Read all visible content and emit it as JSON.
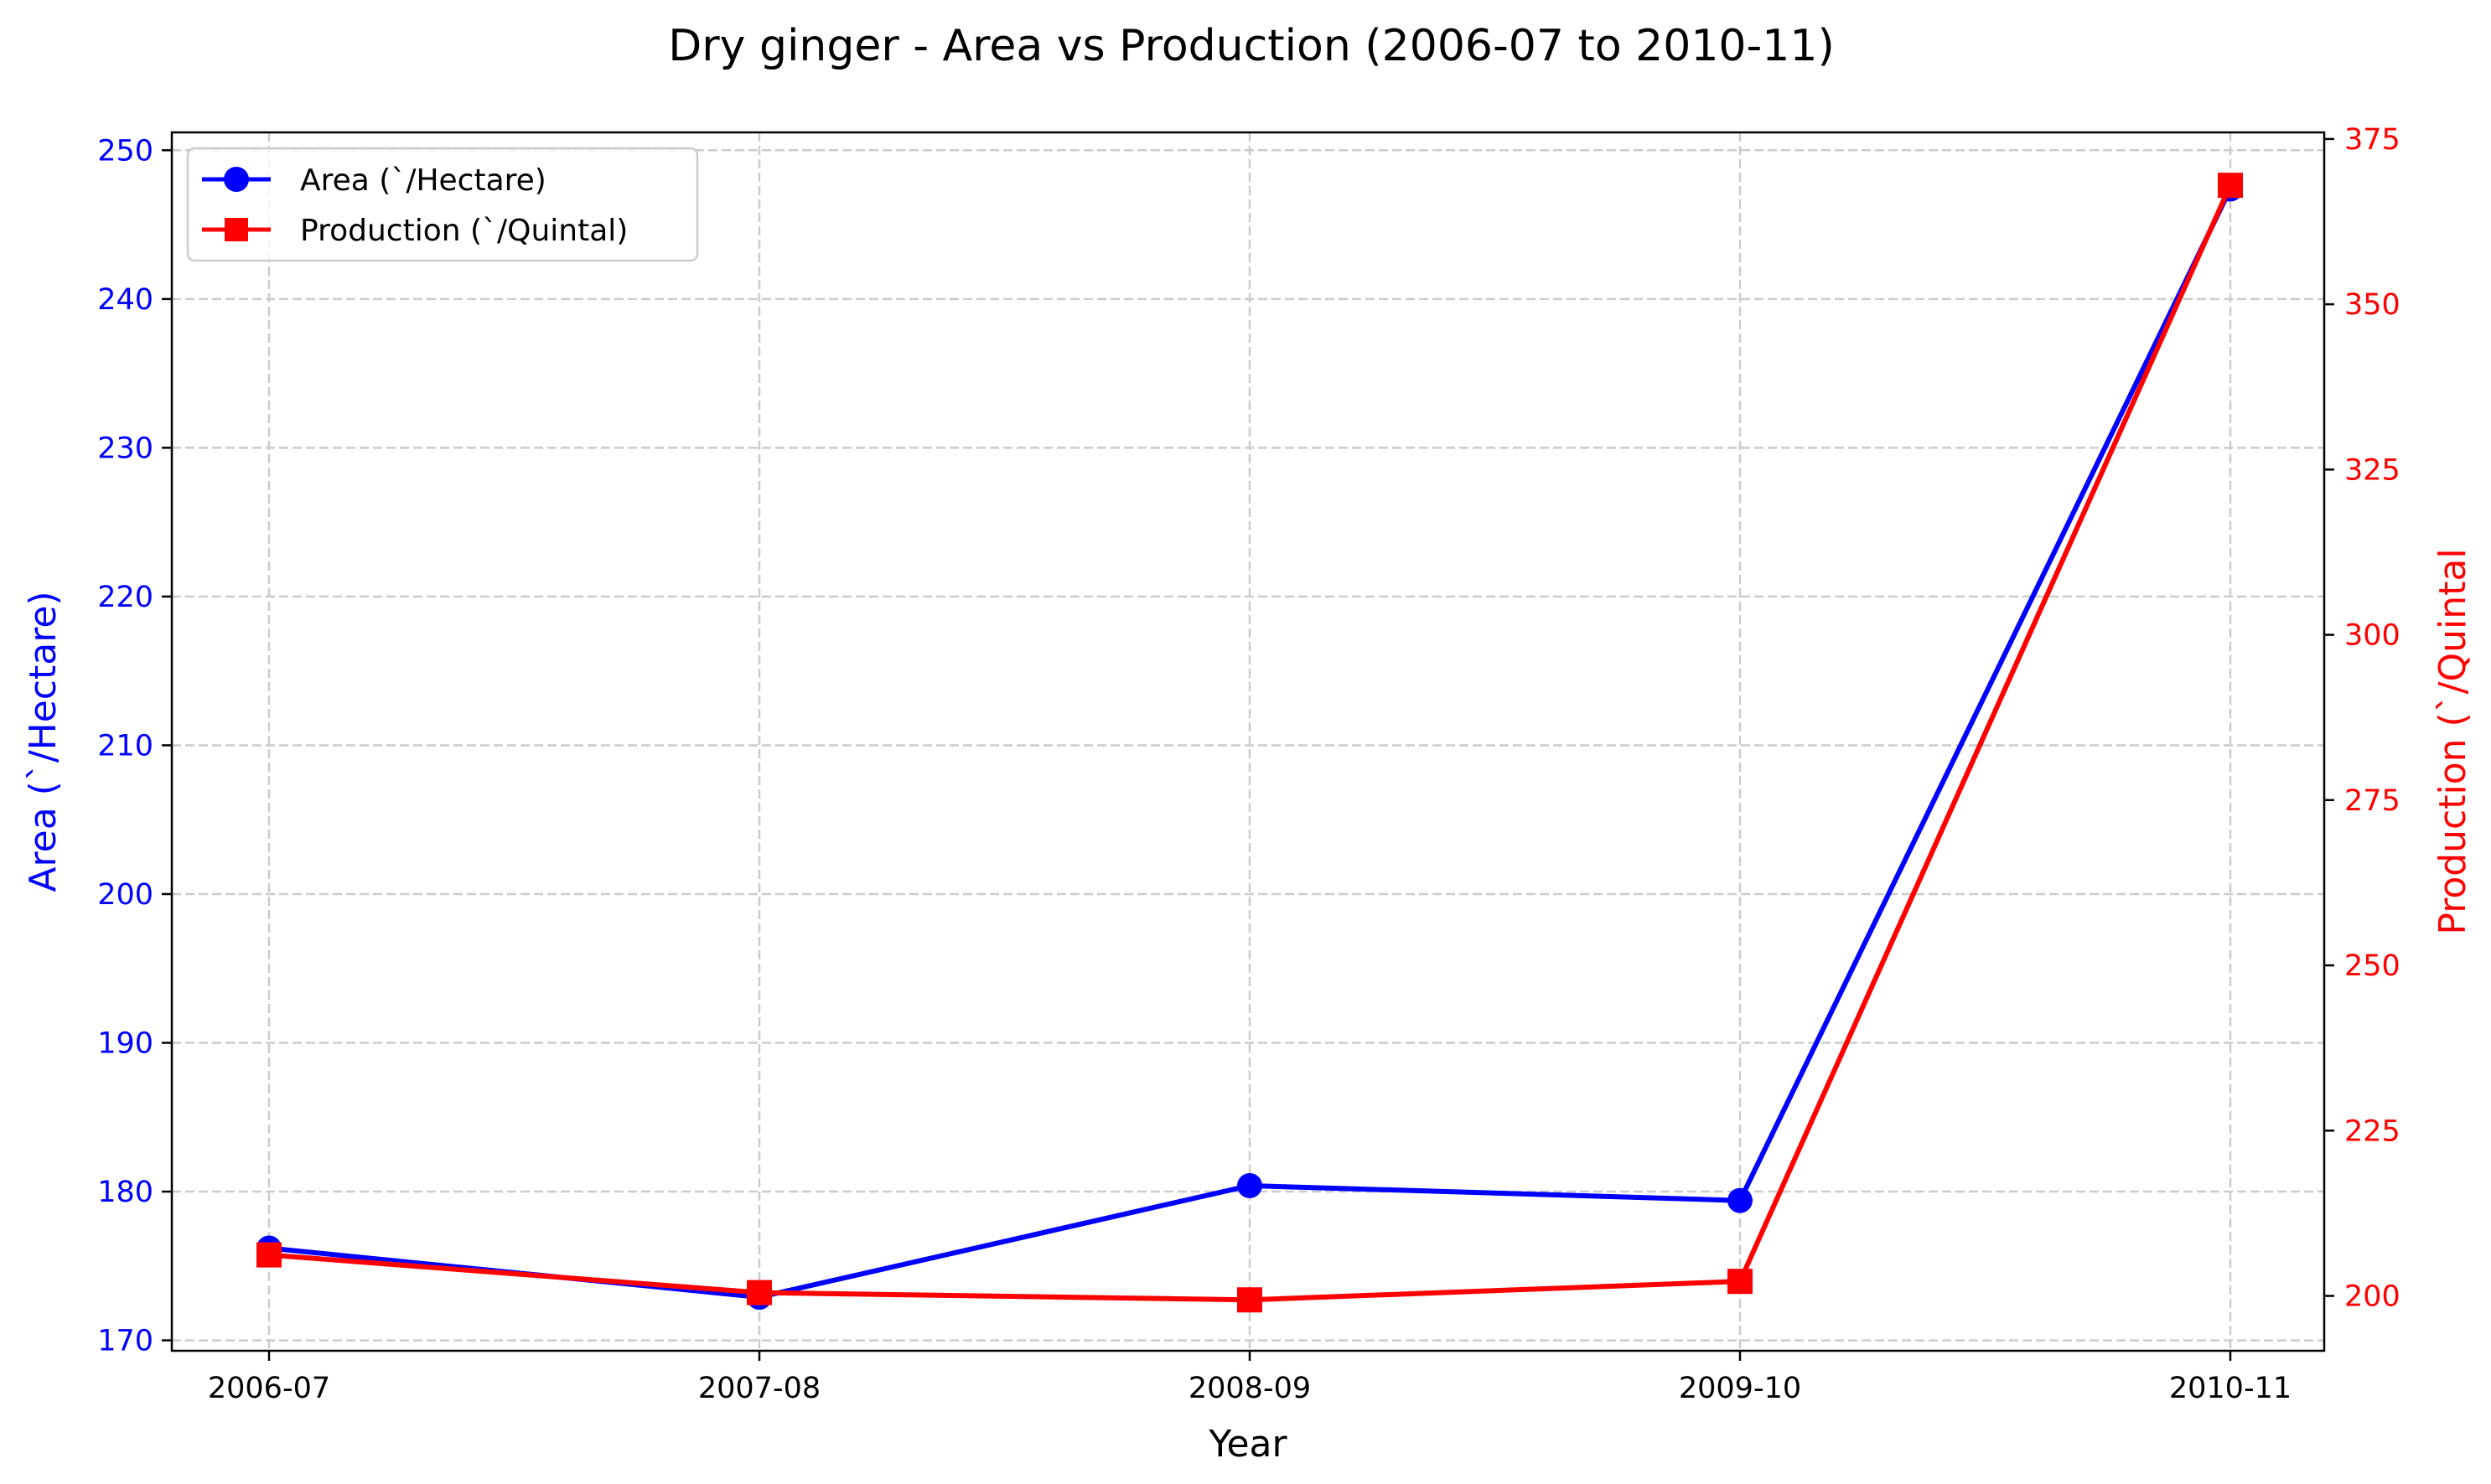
{
  "chart_data": {
    "type": "line",
    "title": "Dry ginger  - Area vs Production (2006-07 to 2010-11)",
    "xlabel": "Year",
    "categories": [
      "2006-07",
      "2007-08",
      "2008-09",
      "2009-10",
      "2010-11"
    ],
    "y_left": {
      "label": "Area (`/Hectare)",
      "color": "#0000ff",
      "ylim": [
        169.3,
        251.2
      ],
      "ticks": [
        170,
        180,
        190,
        200,
        210,
        220,
        230,
        240,
        250
      ]
    },
    "y_right": {
      "label": "Production (`/Quintal",
      "color": "#ff0000",
      "ylim": [
        191.7,
        376.0
      ],
      "ticks": [
        200,
        225,
        250,
        275,
        300,
        325,
        350,
        375
      ]
    },
    "series": [
      {
        "name": "Area (`/Hectare)",
        "axis": "left",
        "color": "#0000ff",
        "marker": "circle",
        "values": [
          176.2,
          172.9,
          180.4,
          179.4,
          247.4
        ]
      },
      {
        "name": "Production (`/Quintal)",
        "axis": "right",
        "color": "#ff0000",
        "marker": "square",
        "values": [
          206.2,
          200.5,
          199.4,
          202.2,
          368.0
        ]
      }
    ],
    "grid": true,
    "legend_position": "top-left"
  }
}
